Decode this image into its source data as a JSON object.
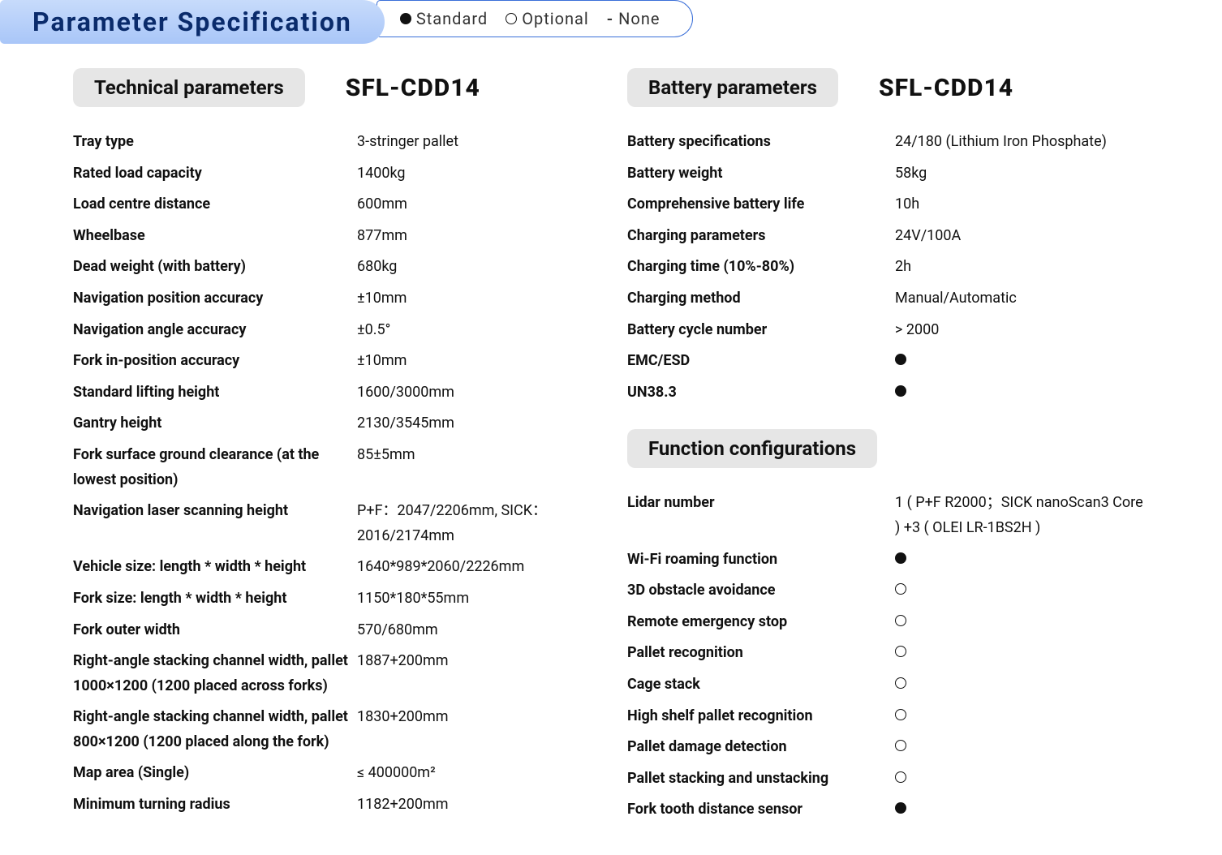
{
  "page_title": "Parameter Specification",
  "legend": {
    "standard": "Standard",
    "optional": "Optional",
    "none": "None"
  },
  "model": "SFL-CDD14",
  "sections": {
    "technical": {
      "header": "Technical parameters",
      "rows": [
        {
          "label": "Tray type",
          "value": "3-stringer pallet"
        },
        {
          "label": "Rated load capacity",
          "value": "1400kg"
        },
        {
          "label": "Load centre distance",
          "value": "600mm"
        },
        {
          "label": "Wheelbase",
          "value": "877mm"
        },
        {
          "label": "Dead weight (with battery)",
          "value": "680kg"
        },
        {
          "label": "Navigation position accuracy",
          "value": "±10mm"
        },
        {
          "label": "Navigation angle accuracy",
          "value": "±0.5°"
        },
        {
          "label": "Fork in-position accuracy",
          "value": "±10mm"
        },
        {
          "label": "Standard lifting height",
          "value": "1600/3000mm"
        },
        {
          "label": "Gantry height",
          "value": "2130/3545mm"
        },
        {
          "label": "Fork surface ground clearance (at the lowest position)",
          "value": "85±5mm"
        },
        {
          "label": "Navigation laser scanning height",
          "value": "P+F：2047/2206mm, SICK：2016/2174mm"
        },
        {
          "label": "Vehicle size: length * width * height",
          "value": "1640*989*2060/2226mm"
        },
        {
          "label": "Fork size: length * width * height",
          "value": "1150*180*55mm"
        },
        {
          "label": "Fork outer width",
          "value": "570/680mm"
        },
        {
          "label": "Right-angle stacking channel width, pallet 1000×1200 (1200 placed across forks)",
          "value": "1887+200mm"
        },
        {
          "label": "Right-angle stacking channel width, pallet 800×1200 (1200 placed along the fork)",
          "value": "1830+200mm"
        },
        {
          "label": "Map area (Single)",
          "value": "≤ 400000m²"
        },
        {
          "label": "Minimum turning radius",
          "value": "1182+200mm"
        }
      ]
    },
    "battery": {
      "header": "Battery parameters",
      "rows": [
        {
          "label": "Battery specifications",
          "value": "24/180 (Lithium Iron Phosphate)"
        },
        {
          "label": "Battery weight",
          "value": "58kg"
        },
        {
          "label": "Comprehensive battery life",
          "value": "10h"
        },
        {
          "label": "Charging parameters",
          "value": "24V/100A"
        },
        {
          "label": "Charging time (10%-80%)",
          "value": "2h"
        },
        {
          "label": "Charging method",
          "value": "Manual/Automatic"
        },
        {
          "label": "Battery cycle number",
          "value": "> 2000"
        },
        {
          "label": "EMC/ESD",
          "marker": "standard"
        },
        {
          "label": "UN38.3",
          "marker": "standard"
        }
      ]
    },
    "function": {
      "header": "Function configurations",
      "rows": [
        {
          "label": "Lidar number",
          "value": "1 ( P+F R2000；SICK nanoScan3 Core ) +3 ( OLEI LR-1BS2H )"
        },
        {
          "label": "Wi-Fi roaming function",
          "marker": "standard"
        },
        {
          "label": "3D obstacle avoidance",
          "marker": "optional"
        },
        {
          "label": "Remote emergency stop",
          "marker": "optional"
        },
        {
          "label": "Pallet recognition",
          "marker": "optional"
        },
        {
          "label": "Cage stack",
          "marker": "optional"
        },
        {
          "label": "High shelf pallet recognition",
          "marker": "optional"
        },
        {
          "label": "Pallet damage detection",
          "marker": "optional"
        },
        {
          "label": "Pallet stacking and unstacking",
          "marker": "optional"
        },
        {
          "label": "Fork tooth distance sensor",
          "marker": "standard"
        }
      ]
    }
  },
  "colors": {
    "title_bg_top": "#c7dbfb",
    "title_bg_bottom": "#a9c6f8",
    "title_text": "#0a2b6b",
    "legend_border": "#3a6fd8",
    "section_pill_bg": "#e6e6e6",
    "text": "#111111",
    "background": "#ffffff"
  }
}
